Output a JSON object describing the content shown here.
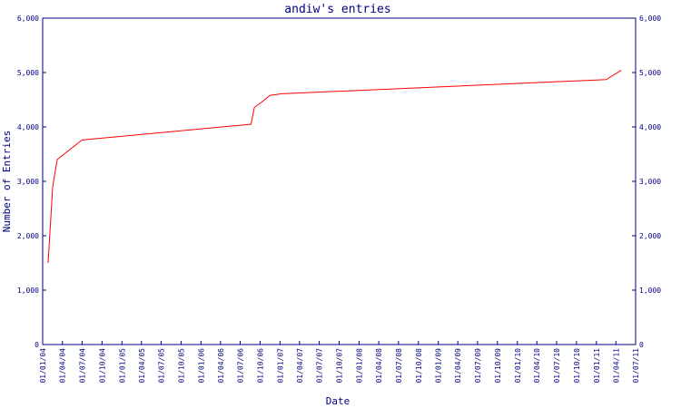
{
  "chart_data": {
    "type": "line",
    "title": "andiw's entries",
    "xlabel": "Date",
    "ylabel": "Number of Entries",
    "xlim": [
      "01/01/04",
      "01/07/11"
    ],
    "xticks": [
      "01/01/04",
      "01/04/04",
      "01/07/04",
      "01/10/04",
      "01/01/05",
      "01/04/05",
      "01/07/05",
      "01/10/05",
      "01/01/06",
      "01/04/06",
      "01/07/06",
      "01/10/06",
      "01/01/07",
      "01/04/07",
      "01/07/07",
      "01/10/07",
      "01/01/08",
      "01/04/08",
      "01/07/08",
      "01/10/08",
      "01/01/09",
      "01/04/09",
      "01/07/09",
      "01/10/09",
      "01/01/10",
      "01/04/10",
      "01/07/10",
      "01/10/10",
      "01/01/11",
      "01/04/11",
      "01/07/11"
    ],
    "ylim": [
      0,
      6000
    ],
    "yticks": [
      0,
      {
        "value": 1000,
        "label": "1,000"
      },
      {
        "value": 2000,
        "label": "2,000"
      },
      {
        "value": 3000,
        "label": "3,000"
      },
      {
        "value": 4000,
        "label": "4,000"
      },
      {
        "value": 5000,
        "label": "5,000"
      },
      {
        "value": 6000,
        "label": "6,000"
      }
    ],
    "y2lim": [
      0,
      6000
    ],
    "y2ticks": [
      0,
      {
        "value": 1000,
        "label": "1,000"
      },
      {
        "value": 2000,
        "label": "2,000"
      },
      {
        "value": 3000,
        "label": "3,000"
      },
      {
        "value": 4000,
        "label": "4,000"
      },
      {
        "value": 5000,
        "label": "5,000"
      },
      {
        "value": 6000,
        "label": "6,000"
      }
    ],
    "series": [
      {
        "color": "#ff0000",
        "x": [
          "26/01/04",
          "16/02/04",
          "08/03/04",
          "01/07/04",
          "28/06/06",
          "20/08/06",
          "05/09/06",
          "10/10/06",
          "15/11/06",
          "10/01/07",
          "15/02/11",
          "25/04/11"
        ],
        "values": [
          1500,
          2900,
          3400,
          3760,
          4030,
          4050,
          4360,
          4460,
          4580,
          4610,
          4870,
          5040
        ]
      }
    ]
  }
}
